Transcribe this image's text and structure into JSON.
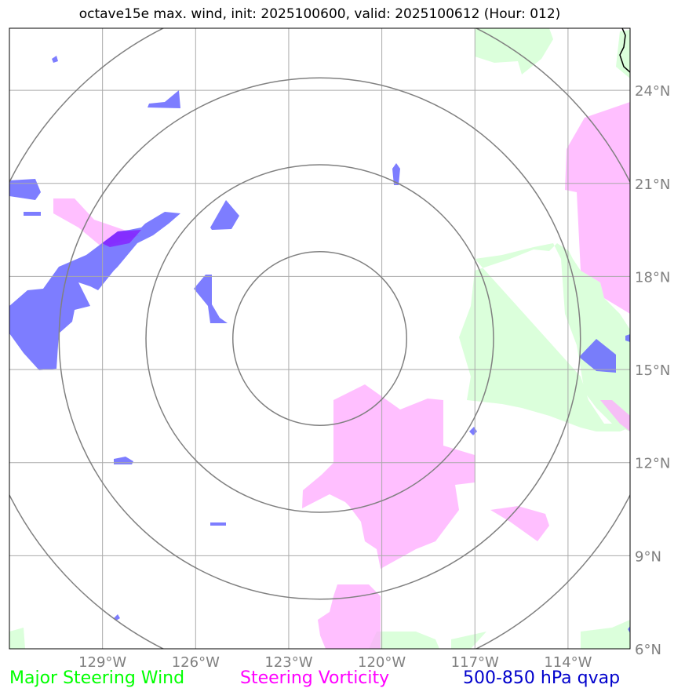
{
  "title": "octave15e max. wind, init: 2025100600, valid: 2025100612 (Hour: 012)",
  "map": {
    "lon_range": [
      -132,
      -112
    ],
    "lat_range": [
      6,
      26
    ],
    "lon_ticks": [
      -129,
      -126,
      -123,
      -120,
      -117,
      -114
    ],
    "lon_labels": [
      "129°W",
      "126°W",
      "123°W",
      "120°W",
      "117°W",
      "114°W"
    ],
    "lat_ticks": [
      24,
      21,
      18,
      15,
      12,
      9,
      6
    ],
    "lat_labels": [
      "24°N",
      "21°N",
      "18°N",
      "15°N",
      "12°N",
      "9°N",
      "6°N"
    ],
    "range_rings_center": {
      "lon": -122,
      "lat": 16
    },
    "range_rings_radius_deg": [
      2.8,
      5.6,
      8.4,
      11.2
    ],
    "colors": {
      "wind": "#ccffcc",
      "vorticity": "#ffaaff",
      "qvap": "#6666ff",
      "rings": "#808080",
      "grid": "#aaaaaa"
    }
  },
  "legend": {
    "wind": "Major Steering Wind",
    "vorticity": "Steering Vorticity",
    "qvap": "500-850 hPa qvap"
  }
}
